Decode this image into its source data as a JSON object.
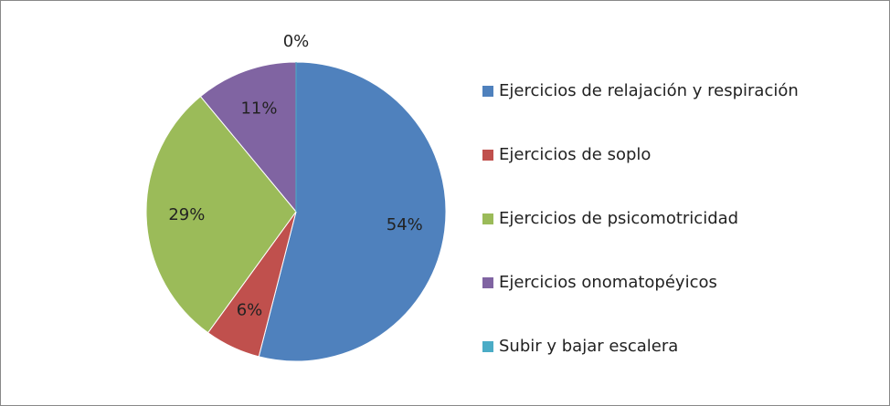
{
  "chart_data": {
    "type": "pie",
    "categories": [
      "Ejercicios de relajación y respiración",
      "Ejercicios de soplo",
      "Ejercicios de psicomotricidad",
      "Ejercicios onomatopéyicos",
      "Subir y bajar escalera"
    ],
    "values": [
      54,
      6,
      29,
      11,
      0
    ],
    "value_labels": [
      "54%",
      "6%",
      "29%",
      "11%",
      "0%"
    ],
    "colors": [
      "#4f81bd",
      "#c0504d",
      "#9bbb59",
      "#8064a2",
      "#4bacc6"
    ],
    "legend": "right"
  }
}
